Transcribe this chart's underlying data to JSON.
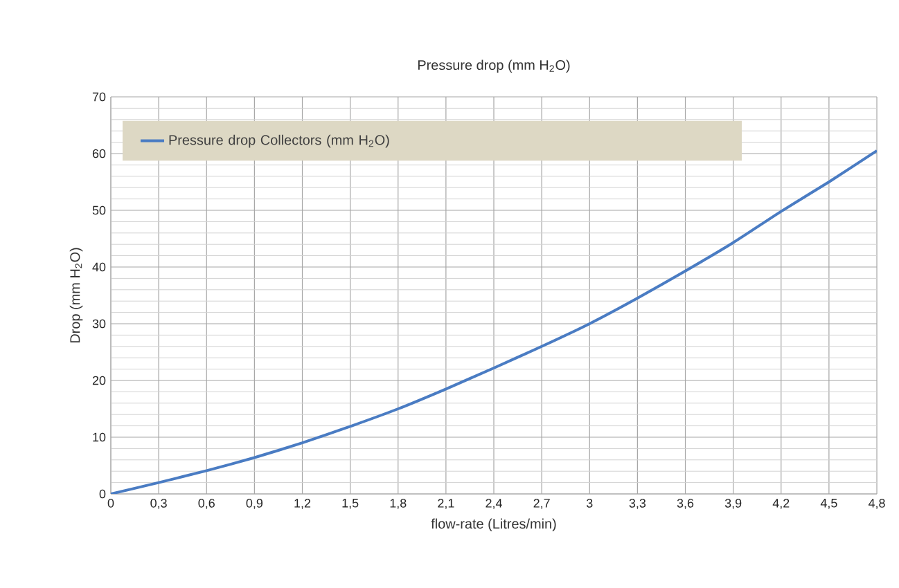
{
  "chart_data": {
    "type": "line",
    "title": "Pressure drop (mm H$_{2}$O)",
    "xlabel": "flow-rate (Litres/min)",
    "ylabel": "Drop (mm H$_{2}$O)",
    "x": [
      0,
      0.3,
      0.6,
      0.9,
      1.2,
      1.5,
      1.8,
      2.1,
      2.4,
      2.7,
      3,
      3.3,
      3.6,
      3.9,
      4.2,
      4.5,
      4.8
    ],
    "series": [
      {
        "name": "Pressure drop Collectors (mm H$_{2}$O)",
        "color": "#4a7cc3",
        "values": [
          0,
          2,
          4.1,
          6.4,
          9,
          11.9,
          15,
          18.5,
          22.2,
          26,
          30,
          34.5,
          39.3,
          44.3,
          49.8,
          55,
          60.5
        ]
      }
    ],
    "xlim": [
      0,
      4.8
    ],
    "ylim": [
      0,
      70
    ],
    "xticks": [
      0,
      {
        "value": 0.3,
        "label": "0,3"
      },
      {
        "value": 0.6,
        "label": "0,6"
      },
      {
        "value": 0.9,
        "label": "0,9"
      },
      {
        "value": 1.2,
        "label": "1,2"
      },
      {
        "value": 1.5,
        "label": "1,5"
      },
      {
        "value": 1.8,
        "label": "1,8"
      },
      {
        "value": 2.1,
        "label": "2,1"
      },
      {
        "value": 2.4,
        "label": "2,4"
      },
      {
        "value": 2.7,
        "label": "2,7"
      },
      3,
      {
        "value": 3.3,
        "label": "3,3"
      },
      {
        "value": 3.6,
        "label": "3,6"
      },
      {
        "value": 3.9,
        "label": "3,9"
      },
      {
        "value": 4.2,
        "label": "4,2"
      },
      {
        "value": 4.5,
        "label": "4,5"
      },
      {
        "value": 4.8,
        "label": "4,8"
      }
    ],
    "yticks": [
      0,
      10,
      20,
      30,
      40,
      50,
      60,
      70
    ],
    "grid": true,
    "legend": "top left",
    "marker": "none",
    "line_style": "solid"
  }
}
